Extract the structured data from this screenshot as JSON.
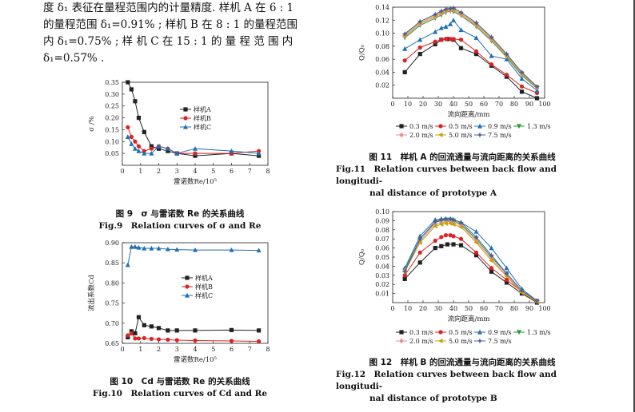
{
  "paragraph": {
    "line1": "度 δ₁ 表征在量程范围内的计量精度. 样机 A 在 6 : 1",
    "line2": "的量程范围 δ₁=0.91% ; 样机 B 在 8 : 1 的量程范围",
    "line3": "内 δ₁=0.75% ; 样 机 C 在 15 : 1 的 量 程 范 围 内",
    "line4": "δ₁=0.57% ."
  },
  "fig9": {
    "caption_zh": "图 9　σ 与雷诺数 Re 的关系曲线",
    "caption_en": "Fig.9　Relation curves of σ and Re"
  },
  "fig10": {
    "caption_zh": "图 10　Cd 与雷诺数 Re 的关系曲线",
    "caption_en": "Fig.10　Relation curves of Cd and Re"
  },
  "fig11": {
    "caption_zh": "图 11　样机 A 的回流通量与流向距离的关系曲线",
    "caption_en_1": "Fig.11　Relation curves between back flow and longitudi-",
    "caption_en_2": "nal distance of prototype A"
  },
  "fig12": {
    "caption_zh": "图 12　样机 B 的回流通量与流向距离的关系曲线",
    "caption_en_1": "Fig.12　Relation curves between back flow and longitudi-",
    "caption_en_2": "nal distance of prototype B"
  },
  "chart_data": [
    {
      "id": "fig9",
      "type": "line",
      "xlabel": "雷诺数Re/10⁵",
      "ylabel": "σ /%",
      "xlim": [
        0,
        8
      ],
      "ylim": [
        0.0,
        0.35
      ],
      "xticks": [
        0,
        1,
        2,
        3,
        4,
        5,
        6,
        7,
        8
      ],
      "yticks": [
        0.05,
        0.1,
        0.15,
        0.2,
        0.25,
        0.3,
        0.35
      ],
      "ytick_labels": [
        "0.05",
        "0.10",
        "0.15",
        "0.20",
        "0.25",
        "0.30",
        "0.35"
      ],
      "legend": [
        "样机A",
        "样机B",
        "样机C"
      ],
      "series": [
        {
          "name": "样机A",
          "color": "#222222",
          "marker": "square",
          "x": [
            0.3,
            0.5,
            0.7,
            0.9,
            1.2,
            1.6,
            2.0,
            2.5,
            3.0,
            4.0,
            6.0,
            7.5
          ],
          "y": [
            0.35,
            0.32,
            0.27,
            0.2,
            0.14,
            0.08,
            0.07,
            0.06,
            0.05,
            0.04,
            0.05,
            0.04
          ]
        },
        {
          "name": "样机B",
          "color": "#dd2222",
          "marker": "circle",
          "x": [
            0.3,
            0.5,
            0.7,
            0.9,
            1.2,
            1.6,
            2.0,
            2.5,
            3.0,
            4.0,
            6.0,
            7.5
          ],
          "y": [
            0.16,
            0.12,
            0.1,
            0.08,
            0.06,
            0.07,
            0.08,
            0.07,
            0.05,
            0.05,
            0.05,
            0.06
          ]
        },
        {
          "name": "样机C",
          "color": "#1f6fb5",
          "marker": "triangle",
          "x": [
            0.3,
            0.5,
            0.7,
            0.9,
            1.2,
            1.6,
            2.0,
            2.5,
            3.0,
            4.0,
            6.0,
            7.5
          ],
          "y": [
            0.12,
            0.09,
            0.07,
            0.06,
            0.05,
            0.05,
            0.08,
            0.07,
            0.05,
            0.07,
            0.06,
            0.05
          ]
        }
      ]
    },
    {
      "id": "fig10",
      "type": "line",
      "xlabel": "雷诺数Re/10⁵",
      "ylabel": "流出系数Cd",
      "xlim": [
        0,
        8
      ],
      "ylim": [
        0.65,
        0.9
      ],
      "xticks": [
        0,
        1,
        2,
        3,
        4,
        5,
        6,
        7,
        8
      ],
      "yticks": [
        0.65,
        0.7,
        0.75,
        0.8,
        0.85,
        0.9
      ],
      "ytick_labels": [
        "0.65",
        "0.70",
        "0.75",
        "0.80",
        "0.85",
        "0.90"
      ],
      "legend": [
        "样机A",
        "样机B",
        "样机C"
      ],
      "series": [
        {
          "name": "样机A",
          "color": "#222222",
          "marker": "square",
          "x": [
            0.3,
            0.5,
            0.7,
            0.9,
            1.2,
            1.6,
            2.0,
            2.5,
            3.0,
            4.0,
            6.0,
            7.5
          ],
          "y": [
            0.665,
            0.68,
            0.675,
            0.715,
            0.695,
            0.692,
            0.688,
            0.682,
            0.682,
            0.682,
            0.683,
            0.682
          ]
        },
        {
          "name": "样机B",
          "color": "#dd2222",
          "marker": "circle",
          "x": [
            0.3,
            0.5,
            0.7,
            0.9,
            1.2,
            1.6,
            2.0,
            2.5,
            3.0,
            4.0,
            6.0,
            7.5
          ],
          "y": [
            0.67,
            0.675,
            0.662,
            0.662,
            0.663,
            0.661,
            0.66,
            0.659,
            0.658,
            0.657,
            0.656,
            0.655
          ]
        },
        {
          "name": "样机C",
          "color": "#1f6fb5",
          "marker": "triangle",
          "x": [
            0.3,
            0.5,
            0.7,
            0.9,
            1.2,
            1.6,
            2.0,
            2.5,
            3.0,
            4.0,
            6.0,
            7.5
          ],
          "y": [
            0.845,
            0.89,
            0.89,
            0.888,
            0.886,
            0.886,
            0.886,
            0.884,
            0.883,
            0.882,
            0.882,
            0.881
          ]
        }
      ]
    },
    {
      "id": "fig11",
      "type": "line",
      "xlabel": "流向距离/mm",
      "ylabel": "Q/Q₀",
      "xlim": [
        0,
        100
      ],
      "ylim": [
        0.0,
        0.14
      ],
      "xticks": [
        0,
        10,
        20,
        30,
        40,
        50,
        60,
        70,
        80,
        90,
        100
      ],
      "yticks": [
        0.02,
        0.04,
        0.06,
        0.08,
        0.1,
        0.12,
        0.14
      ],
      "ytick_labels": [
        "0.02",
        "0.04",
        "0.06",
        "0.08",
        "0.10",
        "0.12",
        "0.14"
      ],
      "legend": [
        "0.3 m/s",
        "0.5 m/s",
        "0.9 m/s",
        "1.3 m/s",
        "2.0 m/s",
        "5.0 m/s",
        "7.5 m/s"
      ],
      "series": [
        {
          "name": "0.3 m/s",
          "color": "#222222",
          "marker": "square",
          "x": [
            8,
            18,
            28,
            32,
            36,
            40,
            45,
            55,
            65,
            75,
            85,
            95
          ],
          "y": [
            0.04,
            0.068,
            0.083,
            0.09,
            0.091,
            0.09,
            0.077,
            0.068,
            0.05,
            0.033,
            0.01,
            0.0
          ]
        },
        {
          "name": "0.5 m/s",
          "color": "#dd2222",
          "marker": "circle",
          "x": [
            8,
            18,
            28,
            32,
            35,
            38,
            40,
            45,
            55,
            65,
            75,
            85,
            95
          ],
          "y": [
            0.058,
            0.078,
            0.087,
            0.09,
            0.091,
            0.091,
            0.091,
            0.09,
            0.072,
            0.052,
            0.036,
            0.018,
            0.008
          ]
        },
        {
          "name": "0.9 m/s",
          "color": "#1f6fb5",
          "marker": "triangle",
          "x": [
            8,
            18,
            28,
            32,
            35,
            38,
            40,
            45,
            55,
            65,
            75,
            85,
            95
          ],
          "y": [
            0.076,
            0.09,
            0.102,
            0.108,
            0.11,
            0.114,
            0.12,
            0.105,
            0.093,
            0.065,
            0.06,
            0.03,
            0.012
          ]
        },
        {
          "name": "1.3 m/s",
          "color": "#2a9a3a",
          "marker": "triangle-down",
          "x": [
            8,
            18,
            28,
            32,
            35,
            38,
            40,
            45,
            55,
            65,
            75,
            85,
            95
          ],
          "y": [
            0.093,
            0.112,
            0.123,
            0.128,
            0.132,
            0.134,
            0.133,
            0.127,
            0.11,
            0.088,
            0.063,
            0.035,
            0.015
          ]
        },
        {
          "name": "2.0 m/s",
          "color": "#ec8a8a",
          "marker": "diamond",
          "x": [
            8,
            18,
            28,
            32,
            35,
            38,
            40,
            45,
            55,
            65,
            75,
            85,
            95
          ],
          "y": [
            0.095,
            0.114,
            0.125,
            0.13,
            0.134,
            0.135,
            0.135,
            0.128,
            0.112,
            0.09,
            0.065,
            0.037,
            0.016
          ]
        },
        {
          "name": "5.0 m/s",
          "color": "#c9a010",
          "marker": "triangle-left",
          "x": [
            8,
            18,
            28,
            32,
            35,
            38,
            40,
            45,
            55,
            65,
            75,
            85,
            95
          ],
          "y": [
            0.097,
            0.116,
            0.127,
            0.132,
            0.136,
            0.137,
            0.137,
            0.13,
            0.114,
            0.092,
            0.066,
            0.038,
            0.017
          ]
        },
        {
          "name": "7.5 m/s",
          "color": "#4a5aa0",
          "marker": "star",
          "x": [
            8,
            18,
            28,
            32,
            35,
            38,
            40,
            45,
            55,
            65,
            75,
            85,
            95
          ],
          "y": [
            0.099,
            0.118,
            0.129,
            0.134,
            0.137,
            0.138,
            0.139,
            0.132,
            0.116,
            0.094,
            0.068,
            0.04,
            0.018
          ]
        }
      ]
    },
    {
      "id": "fig12",
      "type": "line",
      "xlabel": "流向距离/mm",
      "ylabel": "Q/Q₀",
      "xlim": [
        0,
        100
      ],
      "ylim": [
        0.0,
        0.1
      ],
      "xticks": [
        0,
        10,
        20,
        30,
        40,
        50,
        60,
        70,
        80,
        90,
        100
      ],
      "yticks": [
        0.01,
        0.02,
        0.03,
        0.04,
        0.05,
        0.06,
        0.07,
        0.08,
        0.09,
        0.1
      ],
      "ytick_labels": [
        "0.01",
        "0.02",
        "0.03",
        "0.04",
        "0.05",
        "0.06",
        "0.07",
        "0.08",
        "0.09",
        "0.10"
      ],
      "legend": [
        "0.3 m/s",
        "0.5 m/s",
        "0.9 m/s",
        "1.3 m/s",
        "2.0 m/s",
        "5.0 m/s",
        "7.5 m/s"
      ],
      "series": [
        {
          "name": "0.3 m/s",
          "color": "#222222",
          "marker": "square",
          "x": [
            8,
            18,
            28,
            32,
            36,
            40,
            45,
            55,
            65,
            75,
            85,
            95
          ],
          "y": [
            0.026,
            0.044,
            0.06,
            0.062,
            0.064,
            0.064,
            0.063,
            0.052,
            0.034,
            0.022,
            0.01,
            0.0
          ]
        },
        {
          "name": "0.5 m/s",
          "color": "#dd2222",
          "marker": "circle",
          "x": [
            8,
            18,
            28,
            32,
            35,
            38,
            40,
            45,
            55,
            65,
            75,
            85,
            95
          ],
          "y": [
            0.03,
            0.055,
            0.068,
            0.072,
            0.074,
            0.074,
            0.073,
            0.07,
            0.055,
            0.038,
            0.025,
            0.012,
            0.001
          ]
        },
        {
          "name": "0.9 m/s",
          "color": "#1f6fb5",
          "marker": "triangle",
          "x": [
            8,
            18,
            28,
            32,
            35,
            38,
            40,
            45,
            55,
            65,
            75,
            85,
            95
          ],
          "y": [
            0.038,
            0.073,
            0.091,
            0.092,
            0.092,
            0.092,
            0.091,
            0.088,
            0.078,
            0.06,
            0.038,
            0.015,
            0.002
          ]
        },
        {
          "name": "1.3 m/s",
          "color": "#2a9a3a",
          "marker": "triangle-down",
          "x": [
            8,
            18,
            28,
            32,
            35,
            38,
            40,
            45,
            55,
            65,
            75,
            85,
            95
          ],
          "y": [
            0.036,
            0.07,
            0.088,
            0.09,
            0.091,
            0.091,
            0.09,
            0.086,
            0.07,
            0.05,
            0.032,
            0.013,
            0.002
          ]
        },
        {
          "name": "2.0 m/s",
          "color": "#ec8a8a",
          "marker": "diamond",
          "x": [
            8,
            18,
            28,
            32,
            35,
            38,
            40,
            45,
            55,
            65,
            75,
            85,
            95
          ],
          "y": [
            0.035,
            0.068,
            0.086,
            0.088,
            0.089,
            0.089,
            0.088,
            0.085,
            0.068,
            0.048,
            0.03,
            0.012,
            0.002
          ]
        },
        {
          "name": "5.0 m/s",
          "color": "#c9a010",
          "marker": "triangle-left",
          "x": [
            8,
            18,
            28,
            32,
            35,
            38,
            40,
            45,
            55,
            65,
            75,
            85,
            95
          ],
          "y": [
            0.034,
            0.066,
            0.084,
            0.086,
            0.087,
            0.087,
            0.086,
            0.083,
            0.066,
            0.046,
            0.029,
            0.011,
            0.001
          ]
        },
        {
          "name": "7.5 m/s",
          "color": "#4a5aa0",
          "marker": "star",
          "x": [
            8,
            18,
            28,
            32,
            35,
            38,
            40,
            45,
            55,
            65,
            75,
            85,
            95
          ],
          "y": [
            0.034,
            0.07,
            0.089,
            0.091,
            0.092,
            0.092,
            0.091,
            0.088,
            0.072,
            0.052,
            0.032,
            0.013,
            0.002
          ]
        }
      ]
    }
  ]
}
